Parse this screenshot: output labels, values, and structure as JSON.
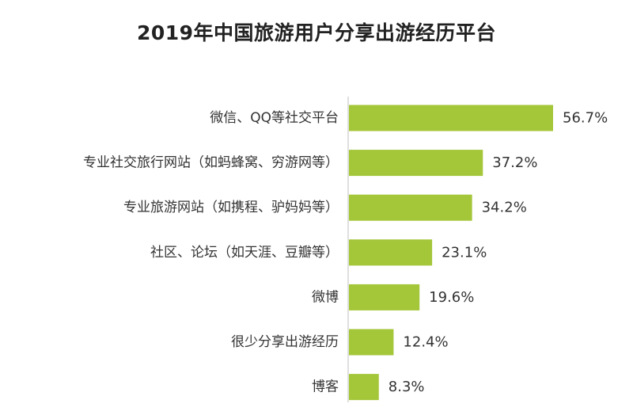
{
  "chart_data": {
    "type": "bar",
    "orientation": "horizontal",
    "title": "2019年中国旅游用户分享出游经历平台",
    "xlabel": "",
    "ylabel": "",
    "xlim": [
      0,
      60
    ],
    "grid": false,
    "categories": [
      "微信、QQ等社交平台",
      "专业社交旅行网站（如蚂蜂窝、穷游网等）",
      "专业旅游网站（如携程、驴妈妈等）",
      "社区、论坛（如天涯、豆瓣等）",
      "微博",
      "很少分享出游经历",
      "博客"
    ],
    "values": [
      56.7,
      37.2,
      34.2,
      23.1,
      19.6,
      12.4,
      8.3
    ],
    "value_labels": [
      "56.7%",
      "37.2%",
      "34.2%",
      "23.1%",
      "19.6%",
      "12.4%",
      "8.3%"
    ],
    "bar_color": "#a4c639",
    "axis_color": "#bfbfbf",
    "text_color": "#333333"
  }
}
